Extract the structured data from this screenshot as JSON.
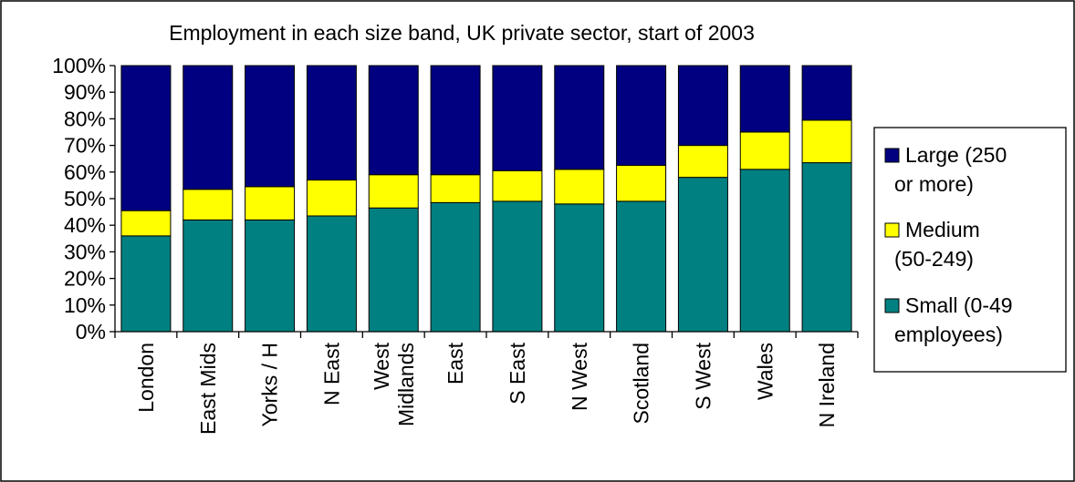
{
  "chart_data": {
    "type": "bar",
    "stacked": "percent",
    "title": "Employment in each size band, UK private sector, start of 2003",
    "xlabel": "",
    "ylabel": "",
    "ylim": [
      0,
      100
    ],
    "yticks": [
      "0%",
      "10%",
      "20%",
      "30%",
      "40%",
      "50%",
      "60%",
      "70%",
      "80%",
      "90%",
      "100%"
    ],
    "categories": [
      "London",
      "East Mids",
      "Yorks / H",
      "N East",
      "West Midlands",
      "East",
      "S East",
      "N West",
      "Scotland",
      "S West",
      "Wales",
      "N Ireland"
    ],
    "category_lines": [
      [
        "London"
      ],
      [
        "East Mids"
      ],
      [
        "Yorks / H"
      ],
      [
        "N East"
      ],
      [
        "West",
        "Midlands"
      ],
      [
        "East"
      ],
      [
        "S East"
      ],
      [
        "N West"
      ],
      [
        "Scotland"
      ],
      [
        "S West"
      ],
      [
        "Wales"
      ],
      [
        "N Ireland"
      ]
    ],
    "grid": false,
    "legend_position": "right",
    "series": [
      {
        "name": "Small (0-49 employees)",
        "legend_lines": [
          "Small (0-49",
          "employees)"
        ],
        "color": "#008080",
        "values": [
          36,
          42,
          42,
          43.5,
          46.5,
          48.5,
          49,
          48,
          49,
          58,
          61,
          63.5
        ]
      },
      {
        "name": "Medium (50-249)",
        "legend_lines": [
          "Medium",
          "(50-249)"
        ],
        "color": "#FFFF00",
        "values": [
          9.5,
          11.5,
          12.5,
          13.5,
          12.5,
          10.5,
          11.5,
          13,
          13.5,
          12,
          14,
          16
        ]
      },
      {
        "name": "Large (250 or more)",
        "legend_lines": [
          "Large (250",
          "or more)"
        ],
        "color": "#000080",
        "values": [
          54.5,
          46.5,
          45.5,
          43,
          41,
          41,
          39.5,
          39,
          37.5,
          30,
          25,
          20.5
        ]
      }
    ],
    "legend_order": [
      2,
      1,
      0
    ]
  }
}
